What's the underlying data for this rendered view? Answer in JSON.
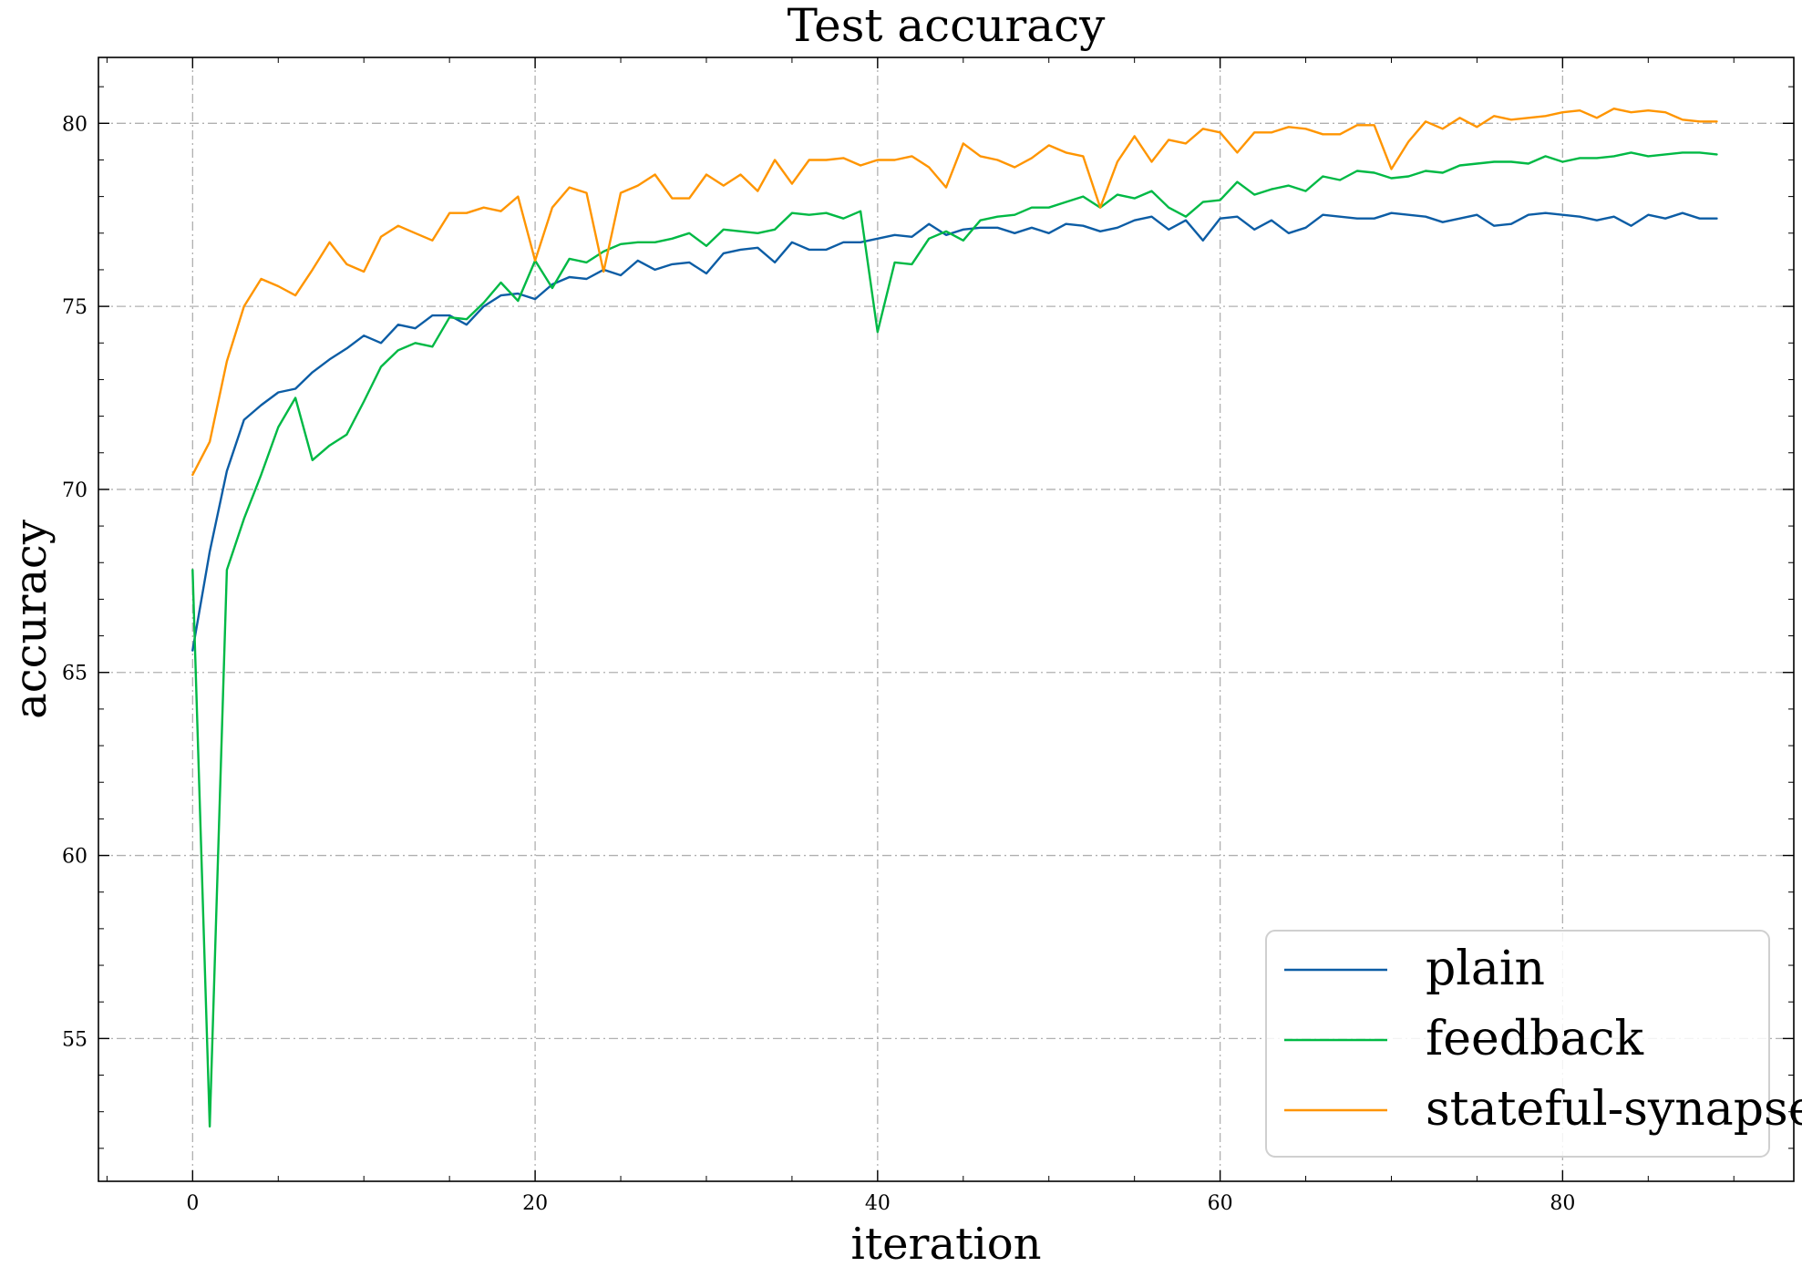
{
  "chart_data": {
    "type": "line",
    "title": "Test accuracy",
    "xlabel": "iteration",
    "ylabel": "accuracy",
    "xlim": [
      -5.5,
      93.5
    ],
    "ylim": [
      51.1,
      81.8
    ],
    "xticks": [
      0,
      20,
      40,
      60,
      80
    ],
    "yticks": [
      55,
      60,
      65,
      70,
      75,
      80
    ],
    "grid": true,
    "legend_position": "lower-right",
    "series": [
      {
        "name": "plain",
        "color": "#0C5DA5",
        "values": [
          65.6,
          68.3,
          70.5,
          71.9,
          72.3,
          72.65,
          72.75,
          73.2,
          73.55,
          73.85,
          74.2,
          74.0,
          74.5,
          74.4,
          74.75,
          74.75,
          74.5,
          75.0,
          75.3,
          75.35,
          75.2,
          75.6,
          75.8,
          75.75,
          76.0,
          75.85,
          76.25,
          76.0,
          76.15,
          76.2,
          75.9,
          76.45,
          76.55,
          76.6,
          76.2,
          76.75,
          76.55,
          76.55,
          76.75,
          76.75,
          76.85,
          76.95,
          76.9,
          77.25,
          76.95,
          77.1,
          77.15,
          77.15,
          77.0,
          77.15,
          77.0,
          77.25,
          77.2,
          77.05,
          77.15,
          77.35,
          77.45,
          77.1,
          77.35,
          76.8,
          77.4,
          77.45,
          77.1,
          77.35,
          77.0,
          77.15,
          77.5,
          77.45,
          77.4,
          77.4,
          77.55,
          77.5,
          77.45,
          77.3,
          77.4,
          77.5,
          77.2,
          77.25,
          77.5,
          77.55,
          77.5,
          77.45,
          77.35,
          77.45,
          77.2,
          77.5,
          77.4,
          77.55,
          77.4,
          77.4
        ]
      },
      {
        "name": "feedback",
        "color": "#00B945",
        "values": [
          67.8,
          52.6,
          67.8,
          69.2,
          70.4,
          71.7,
          72.5,
          70.8,
          71.2,
          71.5,
          72.4,
          73.35,
          73.8,
          74.0,
          73.9,
          74.7,
          74.65,
          75.1,
          75.65,
          75.15,
          76.25,
          75.5,
          76.3,
          76.2,
          76.5,
          76.7,
          76.75,
          76.75,
          76.85,
          77.0,
          76.65,
          77.1,
          77.05,
          77.0,
          77.1,
          77.55,
          77.5,
          77.55,
          77.4,
          77.6,
          74.3,
          76.2,
          76.15,
          76.85,
          77.05,
          76.8,
          77.35,
          77.45,
          77.5,
          77.7,
          77.7,
          77.85,
          78.0,
          77.7,
          78.05,
          77.95,
          78.15,
          77.7,
          77.45,
          77.85,
          77.9,
          78.4,
          78.05,
          78.2,
          78.3,
          78.15,
          78.55,
          78.45,
          78.7,
          78.65,
          78.5,
          78.55,
          78.7,
          78.65,
          78.85,
          78.9,
          78.95,
          78.95,
          78.9,
          79.1,
          78.95,
          79.05,
          79.05,
          79.1,
          79.2,
          79.1,
          79.15,
          79.2,
          79.2,
          79.15
        ]
      },
      {
        "name": "stateful-synapse",
        "color": "#FF9500",
        "values": [
          70.4,
          71.3,
          73.5,
          75.0,
          75.75,
          75.55,
          75.3,
          76.0,
          76.75,
          76.15,
          75.95,
          76.9,
          77.2,
          77.0,
          76.8,
          77.55,
          77.55,
          77.7,
          77.6,
          78.0,
          76.25,
          77.7,
          78.25,
          78.1,
          75.95,
          78.1,
          78.3,
          78.6,
          77.95,
          77.95,
          78.6,
          78.3,
          78.6,
          78.15,
          79.0,
          78.35,
          79.0,
          79.0,
          79.05,
          78.85,
          79.0,
          79.0,
          79.1,
          78.8,
          78.25,
          79.45,
          79.1,
          79.0,
          78.8,
          79.05,
          79.4,
          79.2,
          79.1,
          77.7,
          78.95,
          79.65,
          78.95,
          79.55,
          79.45,
          79.85,
          79.75,
          79.2,
          79.75,
          79.75,
          79.9,
          79.85,
          79.7,
          79.7,
          79.95,
          79.95,
          78.75,
          79.5,
          80.05,
          79.85,
          80.15,
          79.9,
          80.2,
          80.1,
          80.15,
          80.2,
          80.3,
          80.35,
          80.15,
          80.4,
          80.3,
          80.35,
          80.3,
          80.1,
          80.05,
          80.05
        ]
      }
    ]
  }
}
